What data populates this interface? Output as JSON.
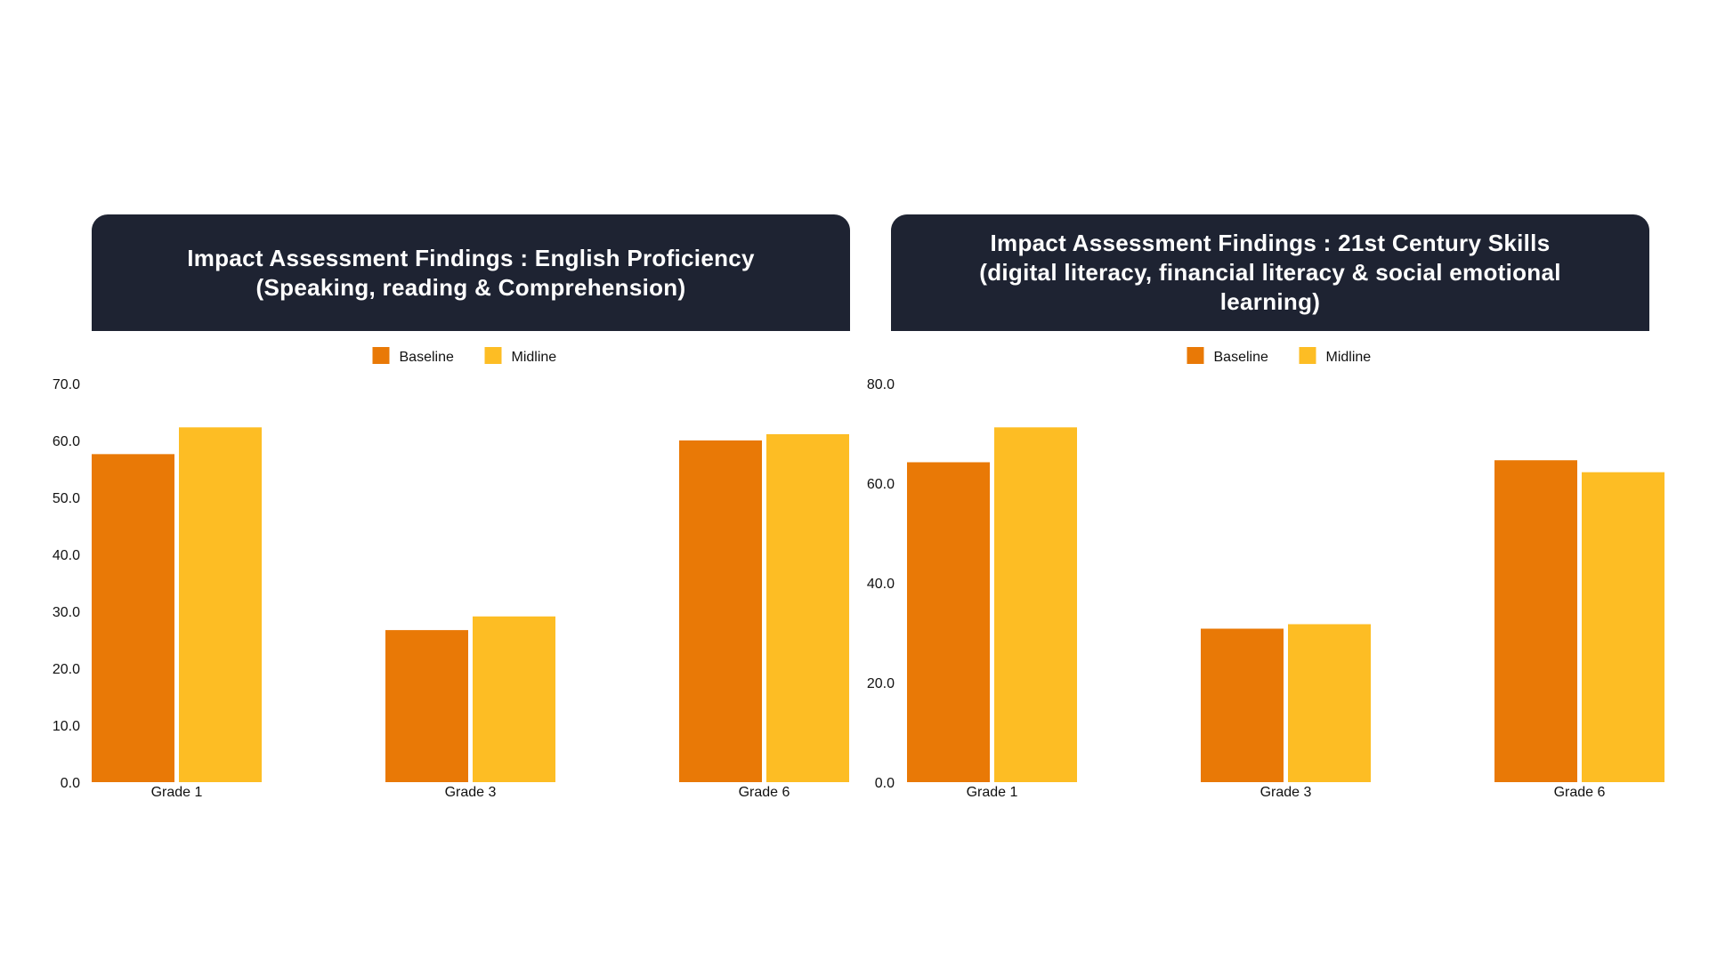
{
  "colors": {
    "baseline": "#e97906",
    "midline": "#fdbd24",
    "header_bg": "#1e2332"
  },
  "chart_data": [
    {
      "type": "bar",
      "title": "Impact Assessment Findings : English Proficiency\n(Speaking, reading & Comprehension)",
      "categories": [
        "Grade 1",
        "Grade 3",
        "Grade 6"
      ],
      "series": [
        {
          "name": "Baseline",
          "values": [
            57.6,
            26.7,
            60.0
          ]
        },
        {
          "name": "Midline",
          "values": [
            62.3,
            29.1,
            61.1
          ]
        }
      ],
      "ylim": [
        0,
        70
      ],
      "yticks": [
        0,
        10,
        20,
        30,
        40,
        50,
        60,
        70
      ],
      "ytick_labels": [
        "0.0",
        "10.0",
        "20.0",
        "30.0",
        "40.0",
        "50.0",
        "60.0",
        "70.0"
      ],
      "legend_position": "top-center",
      "grid": false,
      "xlabel": "",
      "ylabel": ""
    },
    {
      "type": "bar",
      "title": "Impact Assessment Findings : 21st Century Skills\n(digital literacy, financial literacy & social emotional\nlearning)",
      "categories": [
        "Grade 1",
        "Grade 3",
        "Grade 6"
      ],
      "series": [
        {
          "name": "Baseline",
          "values": [
            64.2,
            30.8,
            64.6
          ]
        },
        {
          "name": "Midline",
          "values": [
            71.2,
            31.7,
            62.2
          ]
        }
      ],
      "ylim": [
        0,
        80
      ],
      "yticks": [
        0,
        20,
        40,
        60,
        80
      ],
      "ytick_labels": [
        "0.0",
        "20.0",
        "40.0",
        "60.0",
        "80.0"
      ],
      "legend_position": "top-center",
      "grid": false,
      "xlabel": "",
      "ylabel": ""
    }
  ]
}
